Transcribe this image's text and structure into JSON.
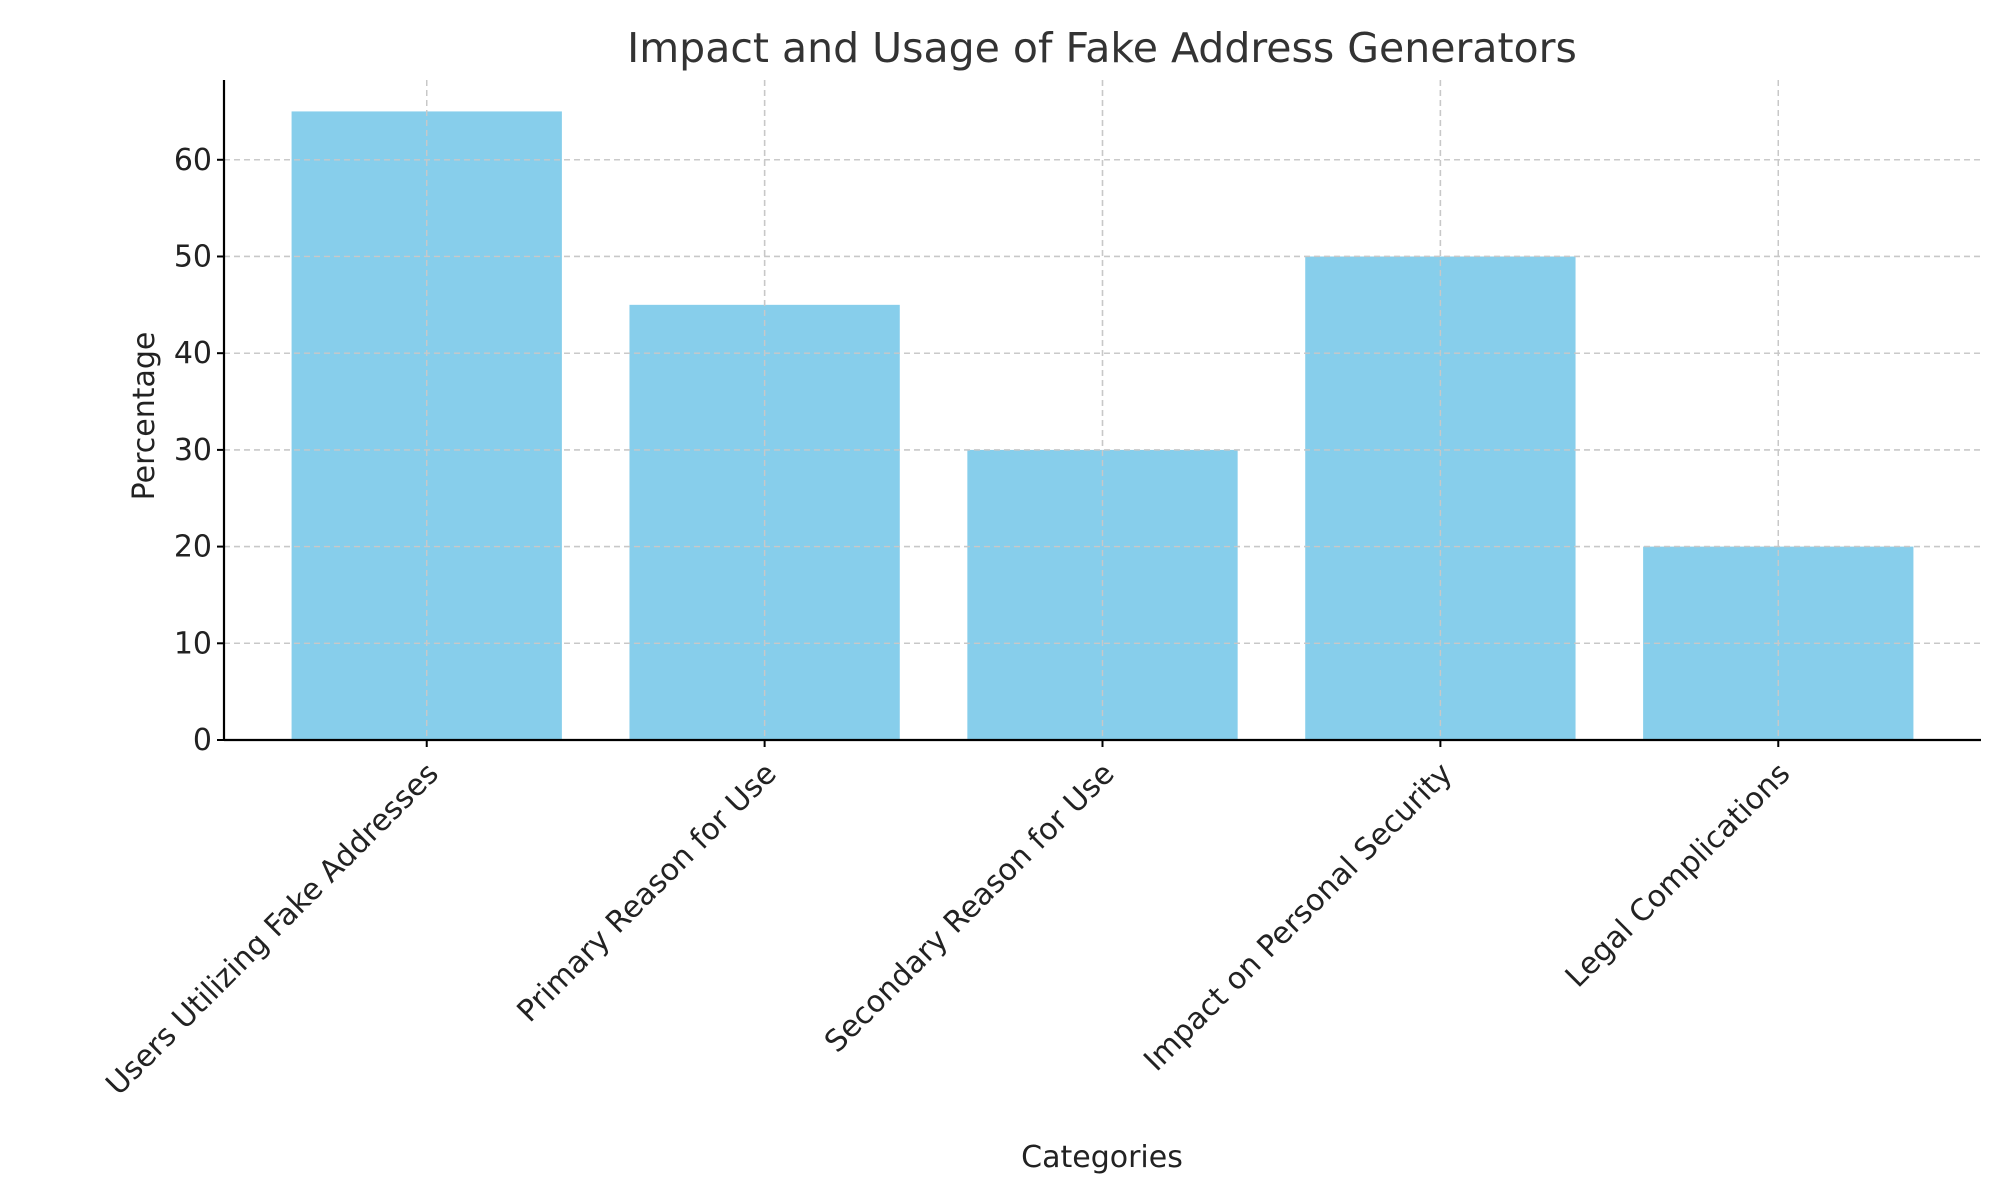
{
  "chart_data": {
    "type": "bar",
    "title": "Impact and Usage of Fake Address Generators",
    "xlabel": "Categories",
    "ylabel": "Percentage",
    "categories": [
      "Users Utilizing Fake Addresses",
      "Primary Reason for Use",
      "Secondary Reason for Use",
      "Impact on Personal Security",
      "Legal Complications"
    ],
    "values": [
      65,
      45,
      30,
      50,
      20
    ],
    "ylim": [
      0,
      68.25
    ],
    "yticks": [
      0,
      10,
      20,
      30,
      40,
      50,
      60
    ],
    "grid": true,
    "bar_color": "#87CEEB"
  }
}
